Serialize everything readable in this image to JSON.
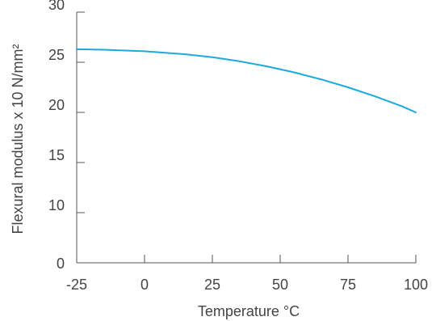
{
  "chart_data": {
    "type": "line",
    "title": "",
    "xlabel": "Temperature °C",
    "ylabel": "Flexural modulus x 10 N/mm²",
    "xlim": [
      -25,
      100
    ],
    "ylim": [
      0,
      30
    ],
    "x_ticks": [
      -25,
      0,
      25,
      50,
      75,
      100
    ],
    "x_tick_labels": [
      "-25",
      "0",
      "25",
      "50",
      "75",
      "100"
    ],
    "y_ticks": [
      0,
      10,
      15,
      20,
      25,
      30
    ],
    "y_tick_labels": [
      "0",
      "10",
      "15",
      "20",
      "25",
      "30"
    ],
    "grid": false,
    "series": [
      {
        "color": "#1BA9E0",
        "x": [
          -25,
          -15,
          -5,
          0,
          5,
          15,
          25,
          35,
          45,
          55,
          65,
          75,
          85,
          95,
          100
        ],
        "y": [
          26.3,
          26.25,
          26.15,
          26.1,
          26.0,
          25.8,
          25.5,
          25.1,
          24.6,
          24.0,
          23.3,
          22.5,
          21.6,
          20.6,
          20.0
        ]
      }
    ]
  }
}
